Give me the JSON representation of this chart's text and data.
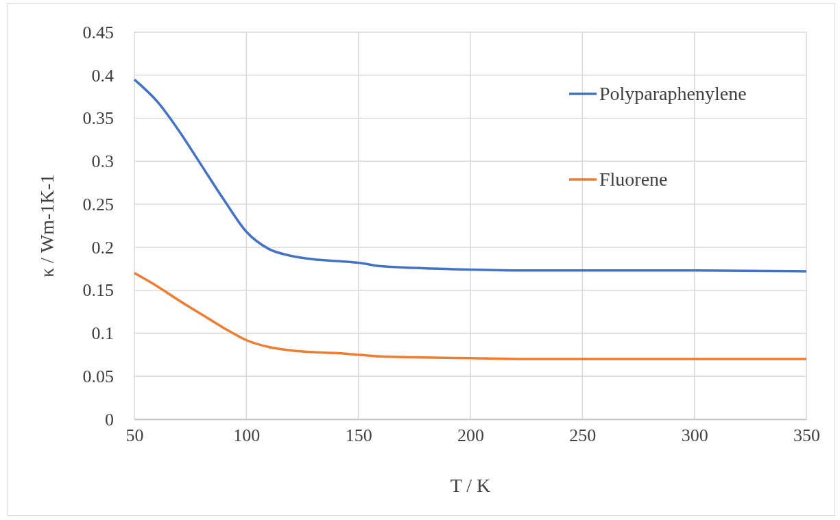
{
  "chart_data": {
    "type": "line",
    "xlabel": "T / K",
    "ylabel": "κ / Wm-1K-1",
    "xlim": [
      50,
      350
    ],
    "xticks": [
      50,
      100,
      150,
      200,
      250,
      300,
      350
    ],
    "ylim": [
      0,
      0.45
    ],
    "yticks": [
      0,
      0.05,
      0.1,
      0.15,
      0.2,
      0.25,
      0.3,
      0.35,
      0.4,
      0.45
    ],
    "grid": true,
    "legend": "top right",
    "marker": "none",
    "line_style": "solid",
    "x": [
      50,
      60,
      70,
      80,
      90,
      100,
      110,
      120,
      130,
      140,
      150,
      160,
      175,
      200,
      225,
      250,
      300,
      350
    ],
    "series": [
      {
        "name": "Polyparaphenylene",
        "color": "#4472c4",
        "values": [
          0.395,
          0.37,
          0.335,
          0.295,
          0.255,
          0.218,
          0.198,
          0.19,
          0.186,
          0.184,
          0.182,
          0.178,
          0.176,
          0.174,
          0.173,
          0.173,
          0.173,
          0.172
        ]
      },
      {
        "name": "Fluorene",
        "color": "#ed7d31",
        "values": [
          0.17,
          0.155,
          0.138,
          0.122,
          0.106,
          0.092,
          0.084,
          0.08,
          0.078,
          0.077,
          0.075,
          0.073,
          0.072,
          0.071,
          0.07,
          0.07,
          0.07,
          0.07
        ]
      }
    ]
  }
}
